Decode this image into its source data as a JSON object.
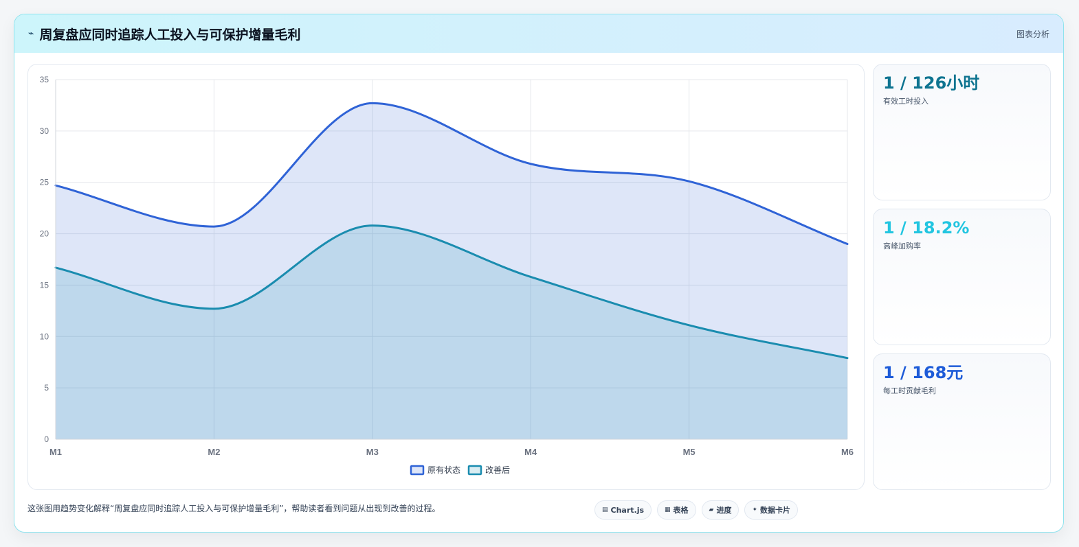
{
  "header": {
    "icon": "bolt-icon",
    "title": "周复盘应同时追踪人工投入与可保护增量毛利",
    "link": "图表分析"
  },
  "kpis": [
    {
      "value": "1 / 126小时",
      "label": "有效工时投入",
      "color": "#0e7490"
    },
    {
      "value": "1 / 18.2%",
      "label": "高峰加购率",
      "color": "#22c5e0"
    },
    {
      "value": "1 / 168元",
      "label": "每工时贡献毛利",
      "color": "#1d5bd8"
    }
  ],
  "footer": {
    "text": "这张图用趋势变化解释“周复盘应同时追踪人工投入与可保护增量毛利”，帮助读者看到问题从出现到改善的过程。",
    "chips": [
      {
        "icon": "chart-icon",
        "label": "Chart.js"
      },
      {
        "icon": "table-icon",
        "label": "表格"
      },
      {
        "icon": "progress-icon",
        "label": "进度"
      },
      {
        "icon": "card-icon",
        "label": "数据卡片"
      }
    ]
  },
  "chart_data": {
    "type": "area",
    "categories": [
      "M1",
      "M2",
      "M3",
      "M4",
      "M5",
      "M6"
    ],
    "ylim": [
      0,
      35
    ],
    "yticks": [
      0,
      5,
      10,
      15,
      20,
      25,
      30,
      35
    ],
    "grid": true,
    "legend_position": "bottom",
    "series": [
      {
        "name": "原有状态",
        "values": [
          24.7,
          20.7,
          32.7,
          26.8,
          25.1,
          19.0
        ],
        "color": "#2f63d6",
        "fill": "rgba(47,99,214,0.16)"
      },
      {
        "name": "改善后",
        "values": [
          16.7,
          12.7,
          20.8,
          15.8,
          11.1,
          7.9
        ],
        "color": "#1a8caf",
        "fill": "rgba(26,140,175,0.16)"
      }
    ]
  }
}
